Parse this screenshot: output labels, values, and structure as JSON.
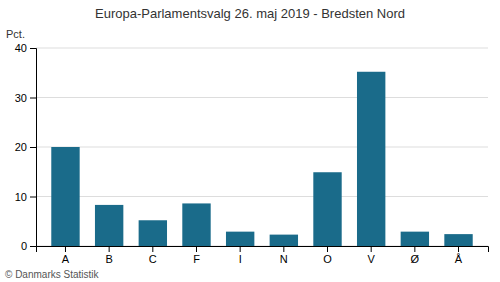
{
  "chart_data": {
    "type": "bar",
    "title": "Europa-Parlamentsvalg 26. maj 2019 - Bredsten Nord",
    "ylabel": "Pct.",
    "footer": "© Danmarks Statistik",
    "categories": [
      "A",
      "B",
      "C",
      "F",
      "I",
      "N",
      "O",
      "V",
      "Ø",
      "Å"
    ],
    "values": [
      20.0,
      8.3,
      5.2,
      8.6,
      2.9,
      2.3,
      14.9,
      35.2,
      2.9,
      2.4
    ],
    "color": "#1a6b8a",
    "ylim": [
      0,
      40
    ],
    "yticks": [
      0,
      10,
      20,
      30,
      40
    ],
    "grid": true
  }
}
